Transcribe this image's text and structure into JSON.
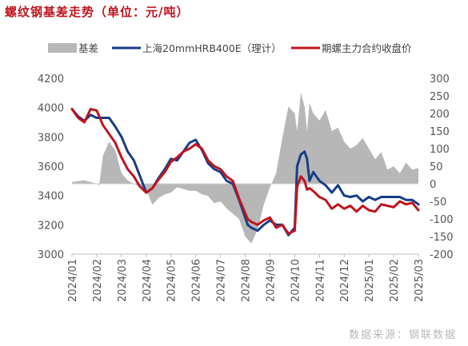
{
  "title": "螺纹钢基差走势（单位：元/吨）",
  "source": "数据来源：钢联数据",
  "chart_data": {
    "type": "line",
    "x_labels": [
      "2024/01",
      "2024/02",
      "2024/03",
      "2024/04",
      "2024/05",
      "2024/06",
      "2024/07",
      "2024/08",
      "2024/09",
      "2024/10",
      "2024/11",
      "2024/12",
      "2025/01",
      "2025/02",
      "2025/03"
    ],
    "y_left": {
      "min": 3000,
      "max": 4200,
      "ticks": [
        3000,
        3200,
        3400,
        3600,
        3800,
        4000,
        4200
      ]
    },
    "y_right": {
      "min": -200,
      "max": 300,
      "ticks": [
        -200,
        -150,
        -100,
        -50,
        0,
        50,
        100,
        150,
        200,
        250,
        300
      ]
    },
    "series": [
      {
        "name": "基差",
        "kind": "area",
        "axis": "right",
        "color": "#b7b7b7",
        "x": [
          0,
          0.5,
          1,
          1.1,
          1.25,
          1.5,
          1.75,
          2,
          2.25,
          2.5,
          2.75,
          3,
          3.25,
          3.5,
          3.75,
          4,
          4.25,
          4.5,
          4.75,
          5,
          5.25,
          5.5,
          5.75,
          6,
          6.25,
          6.5,
          6.75,
          7,
          7.25,
          7.5,
          7.75,
          8,
          8.25,
          8.5,
          8.75,
          9,
          9.1,
          9.25,
          9.4,
          9.5,
          9.6,
          9.75,
          10,
          10.25,
          10.5,
          10.75,
          11,
          11.25,
          11.5,
          11.75,
          12,
          12.25,
          12.5,
          12.75,
          13,
          13.25,
          13.5,
          13.75,
          14
        ],
        "values": [
          5,
          10,
          0,
          -5,
          80,
          120,
          95,
          30,
          10,
          0,
          -10,
          -15,
          -60,
          -40,
          -30,
          -25,
          -10,
          -15,
          -20,
          -20,
          -30,
          -35,
          -55,
          -50,
          -70,
          -85,
          -100,
          -150,
          -170,
          -130,
          -60,
          -10,
          30,
          130,
          220,
          200,
          150,
          260,
          220,
          150,
          230,
          200,
          180,
          210,
          150,
          160,
          120,
          100,
          110,
          130,
          100,
          70,
          90,
          40,
          50,
          30,
          60,
          40,
          45
        ],
        "area": [
          5,
          10,
          0,
          -5,
          80,
          120,
          95,
          30,
          10,
          0,
          -10,
          -15,
          -60,
          -40,
          -30,
          -25,
          -10,
          -15,
          -20,
          -20,
          -30,
          -35,
          -55,
          -50,
          -70,
          -85,
          -100,
          -150,
          -170,
          -130,
          -60,
          -10,
          30,
          130,
          220,
          200,
          150,
          260,
          220,
          150,
          230,
          200,
          180,
          210,
          150,
          160,
          120,
          100,
          110,
          130,
          100,
          70,
          90,
          40,
          50,
          30,
          60,
          40,
          45
        ]
      },
      {
        "name": "上海20mmHRB400E（理计）",
        "kind": "line",
        "axis": "left",
        "color": "#163d86",
        "x": [
          0,
          0.25,
          0.5,
          0.75,
          1,
          1.25,
          1.5,
          1.75,
          2,
          2.25,
          2.5,
          2.75,
          3,
          3.25,
          3.5,
          3.75,
          4,
          4.25,
          4.5,
          4.75,
          5,
          5.25,
          5.5,
          5.75,
          6,
          6.25,
          6.5,
          6.75,
          7,
          7.1,
          7.25,
          7.5,
          7.75,
          8,
          8.25,
          8.5,
          8.75,
          9,
          9.1,
          9.25,
          9.4,
          9.5,
          9.6,
          9.75,
          10,
          10.25,
          10.5,
          10.75,
          11,
          11.25,
          11.5,
          11.75,
          12,
          12.25,
          12.5,
          12.75,
          13,
          13.25,
          13.5,
          13.75,
          14
        ],
        "values": [
          3990,
          3940,
          3910,
          3950,
          3930,
          3930,
          3930,
          3870,
          3800,
          3700,
          3640,
          3530,
          3420,
          3450,
          3520,
          3580,
          3650,
          3640,
          3700,
          3760,
          3780,
          3710,
          3620,
          3580,
          3560,
          3500,
          3480,
          3370,
          3250,
          3200,
          3180,
          3160,
          3200,
          3230,
          3200,
          3200,
          3130,
          3180,
          3600,
          3680,
          3700,
          3650,
          3500,
          3560,
          3500,
          3470,
          3420,
          3470,
          3400,
          3390,
          3400,
          3360,
          3390,
          3370,
          3390,
          3390,
          3390,
          3390,
          3370,
          3370,
          3340
        ]
      },
      {
        "name": "期螺主力合约收盘价",
        "kind": "line",
        "axis": "left",
        "color": "#c0141e",
        "x": [
          0,
          0.25,
          0.5,
          0.75,
          1,
          1.25,
          1.5,
          1.75,
          2,
          2.25,
          2.5,
          2.75,
          3,
          3.25,
          3.5,
          3.75,
          4,
          4.25,
          4.5,
          4.75,
          5,
          5.25,
          5.5,
          5.75,
          6,
          6.25,
          6.5,
          6.75,
          7,
          7.1,
          7.25,
          7.5,
          7.75,
          8,
          8.25,
          8.5,
          8.75,
          9,
          9.1,
          9.25,
          9.4,
          9.5,
          9.6,
          9.75,
          10,
          10.25,
          10.5,
          10.75,
          11,
          11.25,
          11.5,
          11.75,
          12,
          12.25,
          12.5,
          12.75,
          13,
          13.25,
          13.5,
          13.75,
          14
        ],
        "values": [
          3990,
          3930,
          3900,
          3990,
          3980,
          3880,
          3820,
          3760,
          3660,
          3580,
          3530,
          3460,
          3420,
          3450,
          3510,
          3560,
          3630,
          3660,
          3700,
          3720,
          3750,
          3720,
          3640,
          3600,
          3580,
          3530,
          3500,
          3380,
          3280,
          3240,
          3220,
          3200,
          3230,
          3250,
          3180,
          3200,
          3140,
          3160,
          3460,
          3530,
          3500,
          3440,
          3450,
          3430,
          3390,
          3370,
          3310,
          3340,
          3310,
          3330,
          3290,
          3330,
          3300,
          3290,
          3340,
          3330,
          3320,
          3360,
          3340,
          3350,
          3300
        ]
      }
    ],
    "legend": "top",
    "grid": false
  }
}
